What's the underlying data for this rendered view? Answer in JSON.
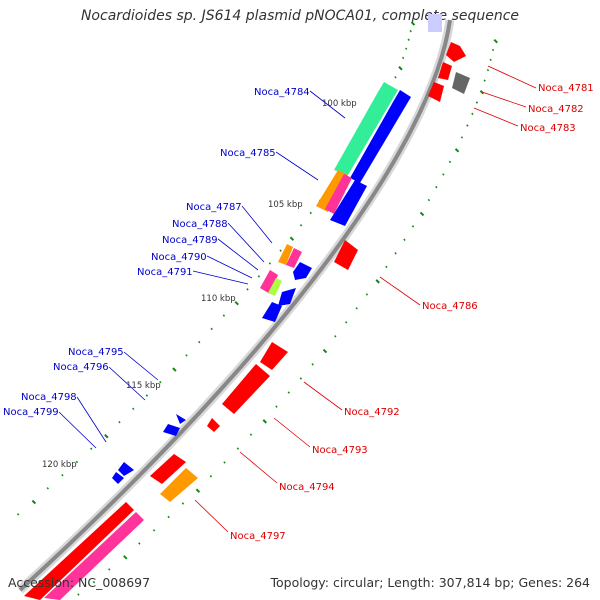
{
  "title": "Nocardioides sp. JS614 plasmid pNOCA01, complete sequence",
  "accession": "Accession: NC_008697",
  "topology": "Topology: circular; Length: 307,814 bp; Genes: 264",
  "colors": {
    "red": "#ff0000",
    "blue": "#0000ff",
    "green": "#33ee99",
    "orange": "#ff9900",
    "magenta": "#ff3399",
    "lime": "#aaff44",
    "gray": "#666666",
    "label_left": "#0000cc",
    "label_right": "#dd0000",
    "backbone": "#888888",
    "tick": "#118811"
  },
  "scale_labels": [
    "100 kbp",
    "105 kbp",
    "110 kbp",
    "115 kbp",
    "120 kbp"
  ],
  "left_genes": [
    {
      "id": "Noca_4784"
    },
    {
      "id": "Noca_4785"
    },
    {
      "id": "Noca_4787"
    },
    {
      "id": "Noca_4788"
    },
    {
      "id": "Noca_4789"
    },
    {
      "id": "Noca_4790"
    },
    {
      "id": "Noca_4791"
    },
    {
      "id": "Noca_4795"
    },
    {
      "id": "Noca_4796"
    },
    {
      "id": "Noca_4798"
    },
    {
      "id": "Noca_4799"
    }
  ],
  "right_genes": [
    {
      "id": "Noca_4781"
    },
    {
      "id": "Noca_4782"
    },
    {
      "id": "Noca_4783"
    },
    {
      "id": "Noca_4786"
    },
    {
      "id": "Noca_4792"
    },
    {
      "id": "Noca_4793"
    },
    {
      "id": "Noca_4794"
    },
    {
      "id": "Noca_4797"
    }
  ]
}
